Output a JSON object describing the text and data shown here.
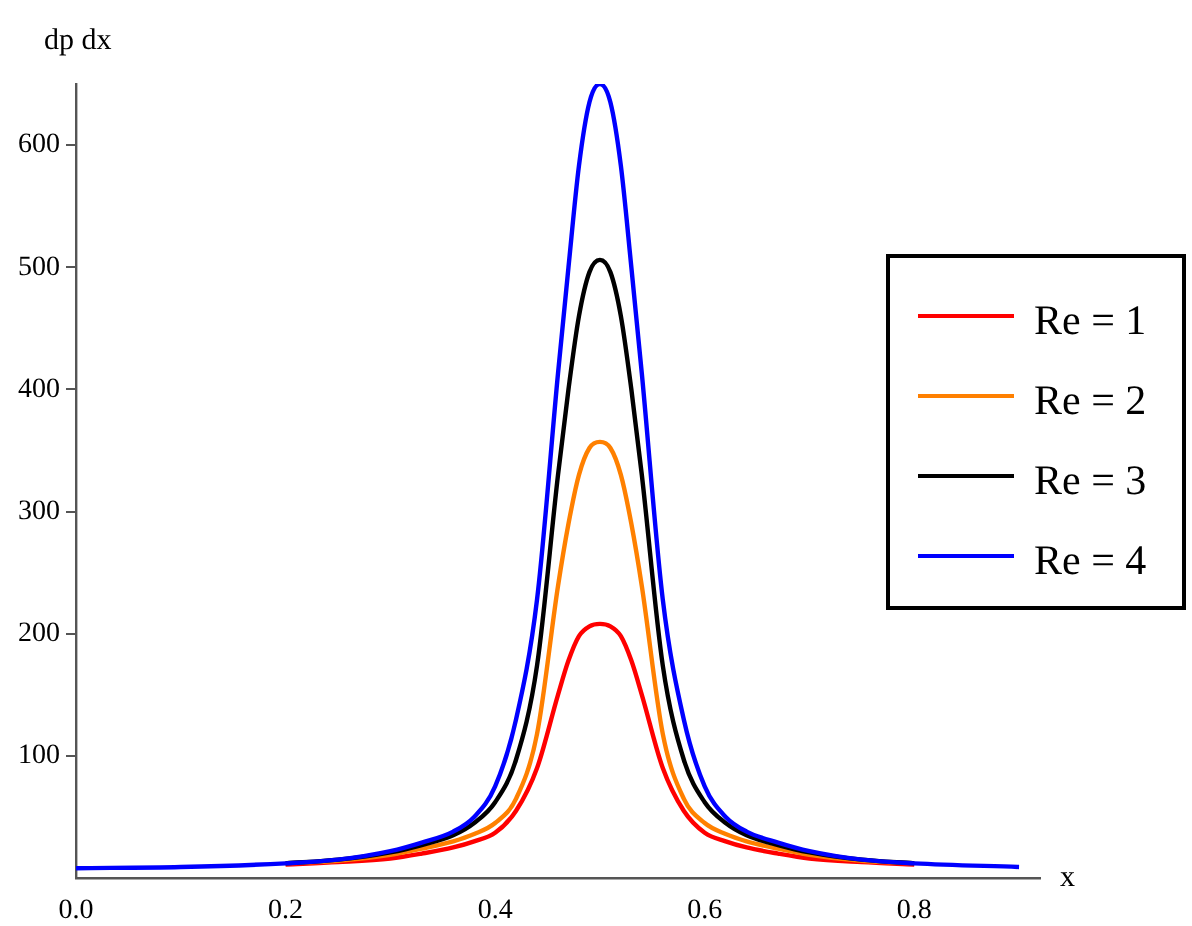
{
  "chart_data": {
    "type": "line",
    "xlabel": "x",
    "ylabel": "dp dx",
    "xlim": [
      0,
      0.92
    ],
    "ylim": [
      0,
      650
    ],
    "xticks": [
      {
        "value": 0,
        "label": "0.0"
      },
      0.2,
      0.4,
      0.6,
      0.8
    ],
    "yticks": [
      100,
      200,
      300,
      400,
      500,
      600
    ],
    "grid": false,
    "legend": "right",
    "marker": "none",
    "line_style": "solid",
    "x": [
      0,
      0.1,
      0.2,
      0.25,
      0.3,
      0.33,
      0.36,
      0.38,
      0.4,
      0.42,
      0.44,
      0.46,
      0.47,
      0.48,
      0.49,
      0.5,
      0.51,
      0.52,
      0.53,
      0.54,
      0.56,
      0.58,
      0.6,
      0.62,
      0.64,
      0.67,
      0.7,
      0.75,
      0.8,
      0.9
    ],
    "series": [
      {
        "name": "Re = 1",
        "color": "#ff0000",
        "values": [
          null,
          null,
          11,
          13,
          16,
          20,
          25,
          30,
          37,
          55,
          90,
          150,
          178,
          198,
          206,
          208,
          206,
          198,
          178,
          150,
          90,
          55,
          37,
          30,
          25,
          20,
          16,
          13,
          11,
          null
        ]
      },
      {
        "name": "Re = 2",
        "color": "#ff8000",
        "values": [
          null,
          null,
          12,
          14,
          19,
          24,
          30,
          36,
          45,
          65,
          118,
          239,
          290,
          330,
          352,
          357,
          352,
          330,
          290,
          239,
          118,
          65,
          45,
          36,
          30,
          24,
          19,
          14,
          12,
          null
        ]
      },
      {
        "name": "Re = 3",
        "color": "#000000",
        "values": [
          null,
          null,
          12,
          15,
          21,
          27,
          35,
          45,
          62,
          97,
          174,
          330,
          400,
          460,
          496,
          506,
          496,
          460,
          400,
          330,
          174,
          97,
          62,
          45,
          35,
          27,
          21,
          15,
          12,
          null
        ]
      },
      {
        "name": "Re = 4",
        "color": "#0000ff",
        "values": [
          8,
          9,
          12,
          15,
          22,
          29,
          38,
          50,
          75,
          130,
          228,
          413,
          500,
          583,
          635,
          650,
          635,
          583,
          500,
          413,
          228,
          130,
          75,
          50,
          38,
          29,
          22,
          15,
          12,
          9
        ]
      }
    ]
  }
}
